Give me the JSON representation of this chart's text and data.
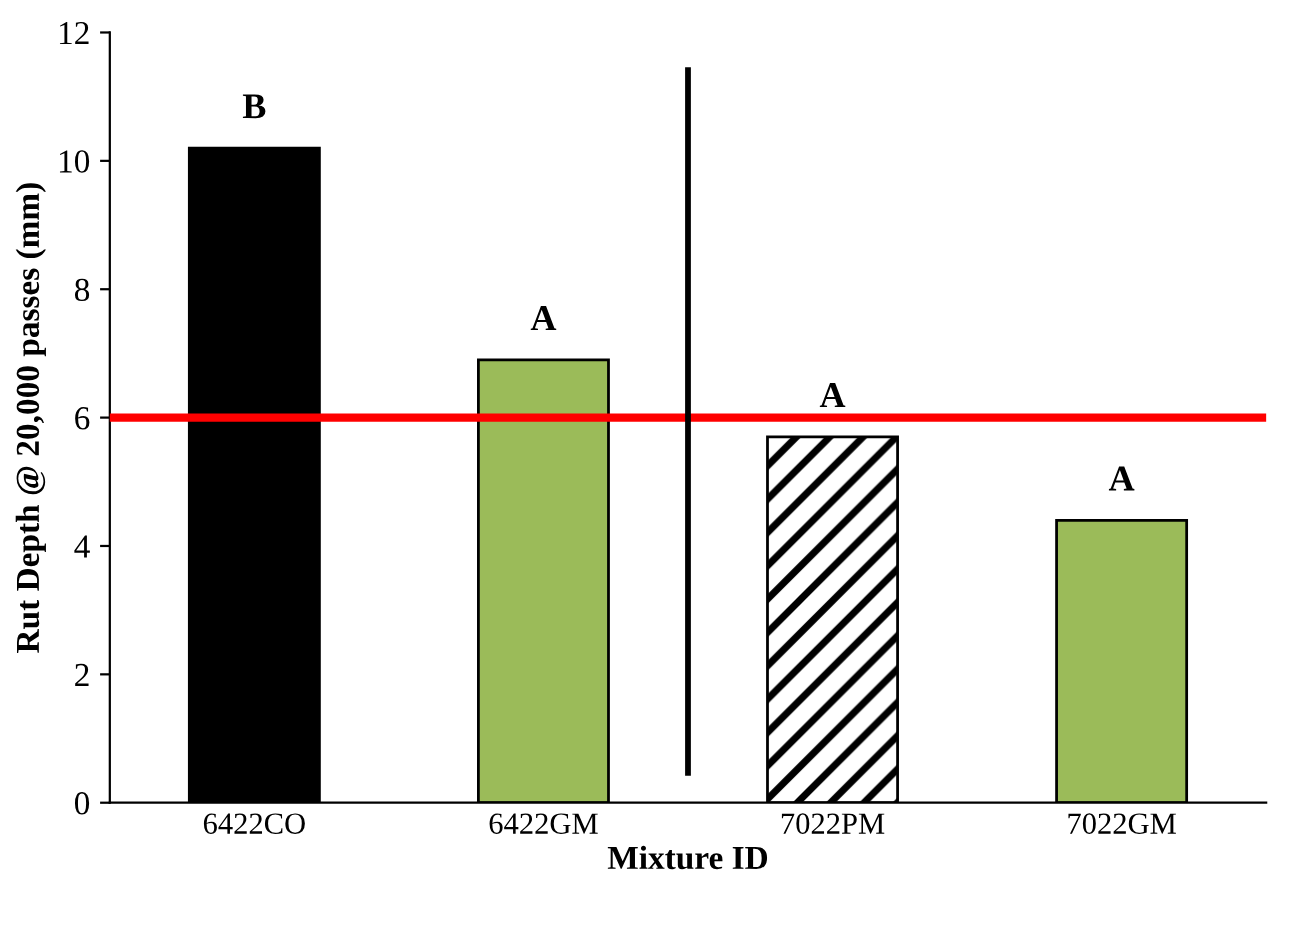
{
  "chart_data": {
    "type": "bar",
    "xlabel": "Mixture ID",
    "ylabel": "Rut Depth @ 20,000 passes (mm)",
    "categories": [
      "6422CO",
      "6422GM",
      "7022PM",
      "7022GM"
    ],
    "values": [
      10.2,
      6.9,
      5.7,
      4.4
    ],
    "colors": [
      "#000000",
      "#9bbb59",
      "#ffffff",
      "#9bbb59"
    ],
    "value_labels": [
      "B",
      "A",
      "A",
      "A"
    ],
    "ylim": [
      0,
      12
    ],
    "yticks": [
      0,
      2,
      4,
      6,
      8,
      10,
      12
    ],
    "grid": false,
    "legend": false,
    "ref_lines": [
      {
        "axis": "y",
        "value": 6,
        "color": "#ff0000"
      }
    ]
  }
}
